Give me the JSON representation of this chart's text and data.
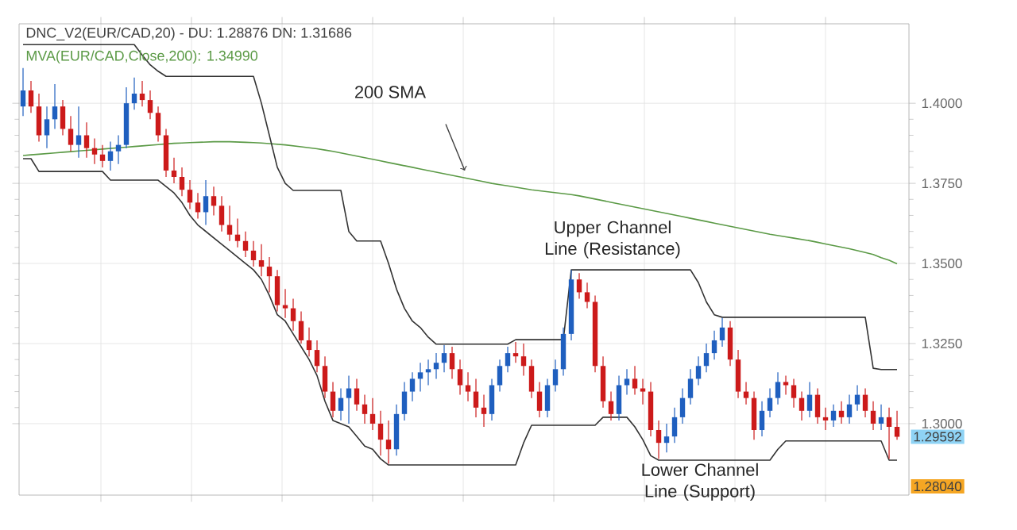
{
  "chart_data": {
    "type": "candlestick",
    "title": "DNC_V2(EUR/CAD,20) - DU: 1.28876 DN: 1.31686",
    "subtitle": "MVA(EUR/CAD,Close,200): 1.34990",
    "categories": [
      null,
      null,
      null,
      null,
      null,
      null,
      null,
      null,
      null,
      null,
      null,
      null,
      null,
      null,
      null,
      null,
      null,
      null,
      null,
      null,
      null,
      null,
      null,
      null,
      null,
      null,
      null,
      null,
      null,
      null,
      null,
      null,
      null,
      null,
      null,
      null,
      null,
      null,
      null,
      null,
      null,
      null,
      null,
      null,
      null,
      null,
      null,
      null,
      null,
      null,
      null,
      null,
      null,
      null,
      null,
      null,
      null,
      null,
      null,
      null,
      null,
      null,
      null,
      null,
      null,
      null,
      null,
      null,
      null,
      null,
      null,
      null,
      null,
      null,
      null,
      null,
      null,
      null,
      null,
      null,
      null,
      null,
      null,
      null,
      null,
      null,
      null,
      null,
      null,
      null,
      null,
      null,
      null,
      null,
      null,
      null,
      null,
      null,
      null,
      null,
      null,
      null,
      null,
      null,
      null,
      null,
      null,
      null,
      null,
      null,
      null
    ],
    "ohlc": [
      [
        1.399,
        1.411,
        1.396,
        1.404
      ],
      [
        1.404,
        1.407,
        1.397,
        1.399
      ],
      [
        1.399,
        1.403,
        1.388,
        1.39
      ],
      [
        1.39,
        1.399,
        1.386,
        1.395
      ],
      [
        1.395,
        1.406,
        1.392,
        1.399
      ],
      [
        1.399,
        1.401,
        1.39,
        1.392
      ],
      [
        1.392,
        1.396,
        1.385,
        1.387
      ],
      [
        1.387,
        1.399,
        1.383,
        1.39
      ],
      [
        1.39,
        1.394,
        1.383,
        1.386
      ],
      [
        1.386,
        1.389,
        1.381,
        1.384
      ],
      [
        1.384,
        1.387,
        1.38,
        1.382
      ],
      [
        1.382,
        1.388,
        1.379,
        1.385
      ],
      [
        1.385,
        1.39,
        1.381,
        1.387
      ],
      [
        1.387,
        1.405,
        1.386,
        1.4
      ],
      [
        1.4,
        1.408,
        1.398,
        1.403
      ],
      [
        1.403,
        1.407,
        1.399,
        1.401
      ],
      [
        1.401,
        1.404,
        1.395,
        1.397
      ],
      [
        1.397,
        1.399,
        1.388,
        1.39
      ],
      [
        1.39,
        1.392,
        1.377,
        1.379
      ],
      [
        1.379,
        1.383,
        1.375,
        1.377
      ],
      [
        1.377,
        1.38,
        1.371,
        1.373
      ],
      [
        1.373,
        1.376,
        1.367,
        1.369
      ],
      [
        1.369,
        1.372,
        1.364,
        1.366
      ],
      [
        1.366,
        1.376,
        1.362,
        1.371
      ],
      [
        1.371,
        1.374,
        1.365,
        1.368
      ],
      [
        1.368,
        1.371,
        1.36,
        1.362
      ],
      [
        1.362,
        1.368,
        1.357,
        1.359
      ],
      [
        1.359,
        1.364,
        1.355,
        1.357
      ],
      [
        1.357,
        1.36,
        1.352,
        1.354
      ],
      [
        1.354,
        1.357,
        1.349,
        1.351
      ],
      [
        1.351,
        1.356,
        1.346,
        1.349
      ],
      [
        1.349,
        1.352,
        1.341,
        1.346
      ],
      [
        1.346,
        1.348,
        1.335,
        1.337
      ],
      [
        1.337,
        1.342,
        1.333,
        1.336
      ],
      [
        1.336,
        1.339,
        1.329,
        1.332
      ],
      [
        1.332,
        1.335,
        1.325,
        1.326
      ],
      [
        1.326,
        1.33,
        1.321,
        1.323
      ],
      [
        1.323,
        1.326,
        1.316,
        1.318
      ],
      [
        1.318,
        1.321,
        1.308,
        1.31
      ],
      [
        1.31,
        1.313,
        1.302,
        1.304
      ],
      [
        1.304,
        1.311,
        1.301,
        1.308
      ],
      [
        1.308,
        1.315,
        1.3,
        1.311
      ],
      [
        1.311,
        1.314,
        1.304,
        1.306
      ],
      [
        1.306,
        1.309,
        1.3,
        1.303
      ],
      [
        1.303,
        1.308,
        1.298,
        1.3
      ],
      [
        1.3,
        1.304,
        1.29,
        1.295
      ],
      [
        1.295,
        1.301,
        1.2875,
        1.292
      ],
      [
        1.292,
        1.306,
        1.29,
        1.303
      ],
      [
        1.303,
        1.313,
        1.301,
        1.31
      ],
      [
        1.31,
        1.316,
        1.307,
        1.314
      ],
      [
        1.314,
        1.319,
        1.31,
        1.316
      ],
      [
        1.316,
        1.32,
        1.312,
        1.317
      ],
      [
        1.317,
        1.322,
        1.314,
        1.319
      ],
      [
        1.319,
        1.3245,
        1.316,
        1.322
      ],
      [
        1.322,
        1.324,
        1.314,
        1.317
      ],
      [
        1.317,
        1.32,
        1.309,
        1.312
      ],
      [
        1.312,
        1.316,
        1.307,
        1.31
      ],
      [
        1.31,
        1.314,
        1.302,
        1.305
      ],
      [
        1.305,
        1.309,
        1.299,
        1.303
      ],
      [
        1.303,
        1.314,
        1.301,
        1.312
      ],
      [
        1.312,
        1.32,
        1.31,
        1.318
      ],
      [
        1.318,
        1.324,
        1.316,
        1.322
      ],
      [
        1.322,
        1.3255,
        1.319,
        1.321
      ],
      [
        1.321,
        1.325,
        1.315,
        1.318
      ],
      [
        1.318,
        1.32,
        1.308,
        1.31
      ],
      [
        1.31,
        1.313,
        1.302,
        1.304
      ],
      [
        1.304,
        1.314,
        1.302,
        1.312
      ],
      [
        1.312,
        1.32,
        1.31,
        1.317
      ],
      [
        1.317,
        1.33,
        1.315,
        1.328
      ],
      [
        1.328,
        1.348,
        1.326,
        1.345
      ],
      [
        1.345,
        1.347,
        1.339,
        1.341
      ],
      [
        1.341,
        1.344,
        1.336,
        1.338
      ],
      [
        1.338,
        1.34,
        1.316,
        1.318
      ],
      [
        1.318,
        1.321,
        1.305,
        1.307
      ],
      [
        1.307,
        1.31,
        1.301,
        1.303
      ],
      [
        1.303,
        1.315,
        1.301,
        1.312
      ],
      [
        1.312,
        1.317,
        1.309,
        1.314
      ],
      [
        1.314,
        1.318,
        1.309,
        1.311
      ],
      [
        1.311,
        1.314,
        1.306,
        1.31
      ],
      [
        1.31,
        1.313,
        1.296,
        1.298
      ],
      [
        1.298,
        1.301,
        1.289,
        1.294
      ],
      [
        1.294,
        1.3,
        1.291,
        1.296
      ],
      [
        1.296,
        1.305,
        1.294,
        1.302
      ],
      [
        1.302,
        1.311,
        1.3,
        1.308
      ],
      [
        1.308,
        1.317,
        1.306,
        1.314
      ],
      [
        1.314,
        1.321,
        1.312,
        1.318
      ],
      [
        1.318,
        1.325,
        1.316,
        1.322
      ],
      [
        1.322,
        1.329,
        1.32,
        1.326
      ],
      [
        1.326,
        1.333,
        1.324,
        1.33
      ],
      [
        1.33,
        1.332,
        1.318,
        1.32
      ],
      [
        1.32,
        1.323,
        1.308,
        1.31
      ],
      [
        1.31,
        1.313,
        1.306,
        1.308
      ],
      [
        1.308,
        1.31,
        1.295,
        1.298
      ],
      [
        1.298,
        1.307,
        1.296,
        1.304
      ],
      [
        1.304,
        1.311,
        1.302,
        1.308
      ],
      [
        1.308,
        1.316,
        1.306,
        1.313
      ],
      [
        1.313,
        1.315,
        1.309,
        1.312
      ],
      [
        1.312,
        1.314,
        1.305,
        1.308
      ],
      [
        1.308,
        1.31,
        1.301,
        1.304
      ],
      [
        1.304,
        1.313,
        1.302,
        1.309
      ],
      [
        1.309,
        1.311,
        1.3,
        1.302
      ],
      [
        1.302,
        1.305,
        1.298,
        1.301
      ],
      [
        1.301,
        1.306,
        1.299,
        1.304
      ],
      [
        1.304,
        1.307,
        1.3,
        1.302
      ],
      [
        1.302,
        1.309,
        1.3,
        1.306
      ],
      [
        1.306,
        1.312,
        1.304,
        1.309
      ],
      [
        1.309,
        1.311,
        1.302,
        1.304
      ],
      [
        1.304,
        1.307,
        1.298,
        1.3
      ],
      [
        1.3,
        1.306,
        1.298,
        1.302
      ],
      [
        1.302,
        1.305,
        1.289,
        1.299
      ],
      [
        1.299,
        1.304,
        1.295,
        1.2959
      ]
    ],
    "series": [
      {
        "type": "line",
        "color": "#5b9a46",
        "values": [
          1.3837,
          1.3839,
          1.3841,
          1.3843,
          1.3845,
          1.3847,
          1.3849,
          1.3851,
          1.3853,
          1.3855,
          1.3857,
          1.3859,
          1.3861,
          1.3863,
          1.3865,
          1.3867,
          1.3869,
          1.3871,
          1.3873,
          1.3875,
          1.3876,
          1.3877,
          1.3878,
          1.3879,
          1.388,
          1.388,
          1.388,
          1.3879,
          1.3878,
          1.3877,
          1.3876,
          1.3874,
          1.3872,
          1.387,
          1.3867,
          1.3864,
          1.3861,
          1.3858,
          1.3854,
          1.385,
          1.3845,
          1.384,
          1.3835,
          1.383,
          1.3825,
          1.382,
          1.3815,
          1.381,
          1.3805,
          1.38,
          1.3795,
          1.379,
          1.3785,
          1.378,
          1.3775,
          1.377,
          1.3765,
          1.376,
          1.3755,
          1.375,
          1.3746,
          1.3742,
          1.3738,
          1.3734,
          1.373,
          1.3727,
          1.3724,
          1.3721,
          1.3718,
          1.3715,
          1.3711,
          1.3706,
          1.3701,
          1.3696,
          1.3691,
          1.3686,
          1.3681,
          1.3676,
          1.3671,
          1.3666,
          1.3661,
          1.3656,
          1.3651,
          1.3646,
          1.3641,
          1.3636,
          1.3631,
          1.3626,
          1.3621,
          1.3616,
          1.3611,
          1.3606,
          1.3601,
          1.3596,
          1.3591,
          1.3587,
          1.3583,
          1.3579,
          1.3575,
          1.3571,
          1.3566,
          1.3561,
          1.3556,
          1.3551,
          1.3546,
          1.354,
          1.3534,
          1.3528,
          1.3518,
          1.351,
          1.3499
        ]
      },
      {
        "type": "line",
        "color": "#333333",
        "values": [
          1.4183,
          1.4183,
          1.4183,
          1.4183,
          1.4183,
          1.4183,
          1.4183,
          1.4183,
          1.4183,
          1.4183,
          1.4183,
          1.4183,
          1.4183,
          1.4183,
          1.4183,
          1.415,
          1.412,
          1.41,
          1.4084,
          1.4084,
          1.4084,
          1.4084,
          1.4084,
          1.4084,
          1.4084,
          1.4084,
          1.4084,
          1.4084,
          1.4084,
          1.4084,
          1.4,
          1.39,
          1.38,
          1.375,
          1.3728,
          1.3728,
          1.3728,
          1.3728,
          1.3728,
          1.3728,
          1.3728,
          1.36,
          1.357,
          1.357,
          1.357,
          1.357,
          1.35,
          1.342,
          1.336,
          1.332,
          1.33,
          1.327,
          1.3248,
          1.3248,
          1.3248,
          1.3248,
          1.3248,
          1.3248,
          1.3248,
          1.3248,
          1.3248,
          1.3248,
          1.3262,
          1.3262,
          1.3262,
          1.3262,
          1.3262,
          1.3262,
          1.3262,
          1.348,
          1.348,
          1.348,
          1.348,
          1.348,
          1.348,
          1.348,
          1.348,
          1.348,
          1.348,
          1.348,
          1.348,
          1.348,
          1.348,
          1.348,
          1.348,
          1.344,
          1.338,
          1.334,
          1.3332,
          1.3332,
          1.3332,
          1.3332,
          1.3332,
          1.3332,
          1.3332,
          1.3332,
          1.3332,
          1.3332,
          1.3332,
          1.3332,
          1.3332,
          1.3332,
          1.3332,
          1.3332,
          1.3332,
          1.3332,
          1.3332,
          1.3173,
          1.3169,
          1.3169,
          1.3169
        ]
      },
      {
        "type": "line",
        "color": "#333333",
        "values": [
          1.3827,
          1.3827,
          1.3787,
          1.3787,
          1.3787,
          1.3787,
          1.3787,
          1.3787,
          1.3787,
          1.3787,
          1.3787,
          1.376,
          1.376,
          1.376,
          1.376,
          1.376,
          1.376,
          1.376,
          1.374,
          1.372,
          1.369,
          1.365,
          1.362,
          1.36,
          1.358,
          1.356,
          1.354,
          1.352,
          1.35,
          1.348,
          1.345,
          1.34,
          1.334,
          1.332,
          1.328,
          1.324,
          1.32,
          1.315,
          1.307,
          1.301,
          1.3,
          1.299,
          1.296,
          1.293,
          1.292,
          1.289,
          1.2871,
          1.2871,
          1.2871,
          1.2871,
          1.2871,
          1.2871,
          1.2871,
          1.2871,
          1.2871,
          1.2871,
          1.2871,
          1.2871,
          1.2871,
          1.2871,
          1.2871,
          1.2871,
          1.2871,
          1.294,
          1.2995,
          1.2995,
          1.2995,
          1.2995,
          1.2995,
          1.2995,
          1.2995,
          1.2995,
          1.2995,
          1.302,
          1.302,
          1.302,
          1.302,
          1.299,
          1.295,
          1.29,
          1.2886,
          1.2886,
          1.2886,
          1.2886,
          1.2886,
          1.2886,
          1.2886,
          1.2886,
          1.2886,
          1.2886,
          1.2886,
          1.2886,
          1.2886,
          1.2886,
          1.2886,
          1.292,
          1.2946,
          1.2946,
          1.2946,
          1.2946,
          1.2946,
          1.2946,
          1.2946,
          1.2946,
          1.2946,
          1.2946,
          1.2946,
          1.2946,
          1.2946,
          1.2886,
          1.2886
        ]
      }
    ],
    "ylim": [
      1.2777,
      1.4248
    ],
    "yticks": [
      {
        "value": 1.3,
        "label": "1.3000"
      },
      {
        "value": 1.325,
        "label": "1.3250"
      },
      {
        "value": 1.35,
        "label": "1.3500"
      },
      {
        "value": 1.375,
        "label": "1.3750"
      },
      {
        "value": 1.4,
        "label": "1.4000"
      }
    ],
    "grid": true,
    "tick_labels": "y",
    "annotations": [
      "200 SMA",
      "Upper Channel Line (Resistance)",
      "Lower Channel Line (Support)",
      "1.29592",
      "1.28040"
    ]
  }
}
